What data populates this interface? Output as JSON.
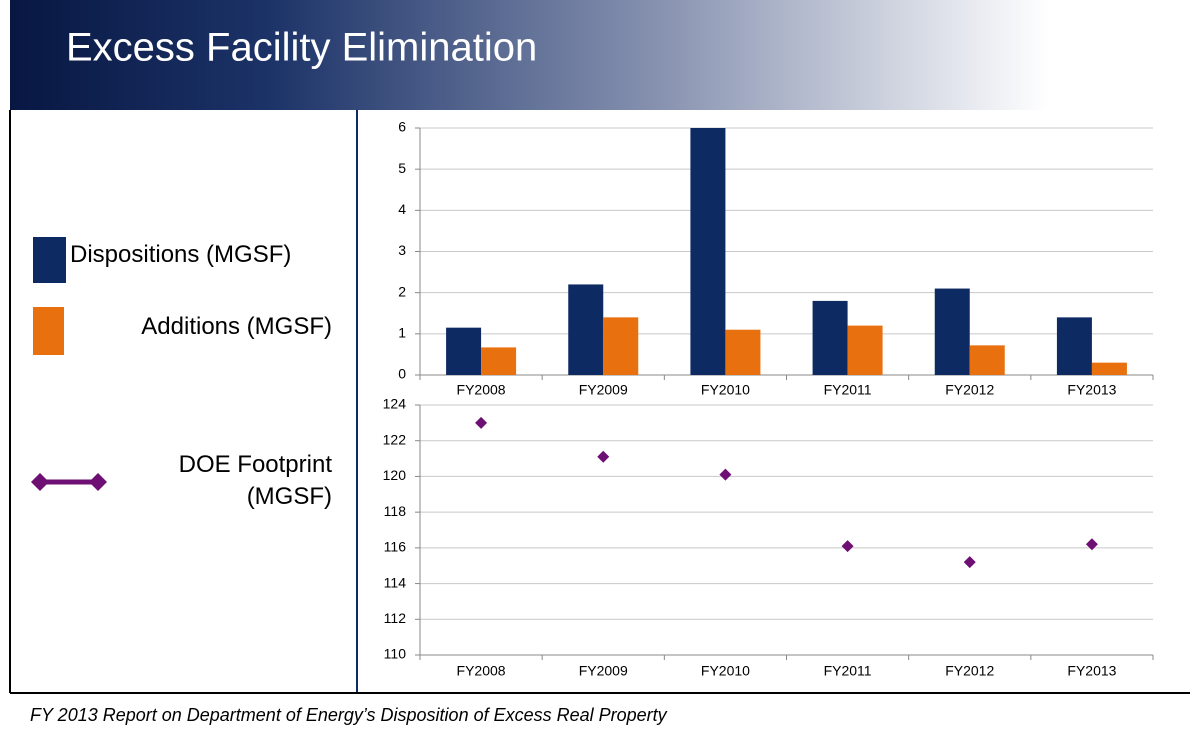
{
  "page": {
    "title": "Excess Facility Elimination",
    "footer": "FY 2013 Report on Department of Energy’s Disposition of Excess Real Property"
  },
  "chart_data": [
    {
      "type": "bar",
      "categories": [
        "FY2008",
        "FY2009",
        "FY2010",
        "FY2011",
        "FY2012",
        "FY2013"
      ],
      "series": [
        {
          "name": "Dispositions (MGSF)",
          "color": "#0e2a63",
          "values": [
            1.15,
            2.2,
            6.0,
            1.8,
            2.1,
            1.4
          ]
        },
        {
          "name": "Additions (MGSF)",
          "color": "#e8700f",
          "values": [
            0.67,
            1.4,
            1.1,
            1.2,
            0.72,
            0.3
          ]
        }
      ],
      "ylim": [
        0,
        6
      ],
      "yticks": [
        0,
        1,
        2,
        3,
        4,
        5,
        6
      ],
      "grid": true
    },
    {
      "type": "line",
      "categories": [
        "FY2008",
        "FY2009",
        "FY2010",
        "FY2011",
        "FY2012",
        "FY2013"
      ],
      "series": [
        {
          "name": "DOE Footprint (MGSF)",
          "color": "#6e0f73",
          "values": [
            123,
            121.1,
            120.1,
            116.1,
            115.2,
            116.2
          ]
        }
      ],
      "ylim": [
        110,
        124
      ],
      "yticks": [
        110,
        112,
        114,
        116,
        118,
        120,
        122,
        124
      ],
      "grid": true
    }
  ]
}
